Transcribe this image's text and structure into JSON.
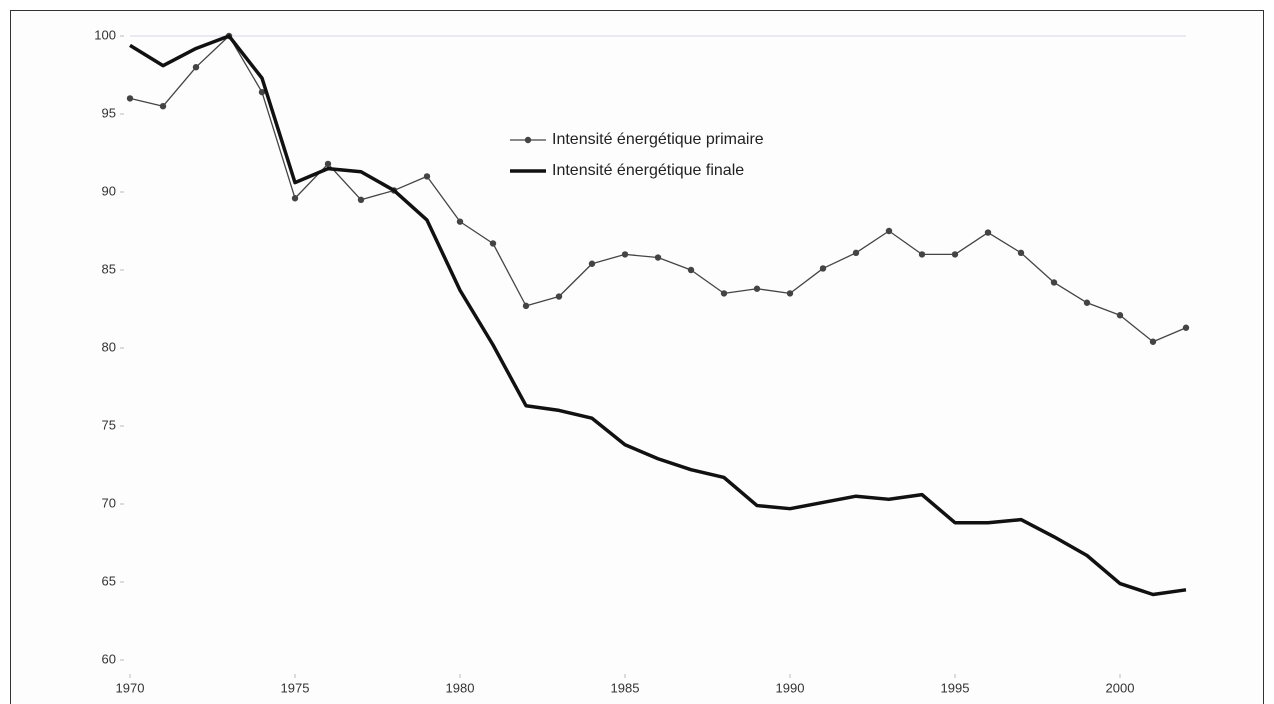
{
  "chart_data": {
    "type": "line",
    "x": [
      1970,
      1971,
      1972,
      1973,
      1974,
      1975,
      1976,
      1977,
      1978,
      1979,
      1980,
      1981,
      1982,
      1983,
      1984,
      1985,
      1986,
      1987,
      1988,
      1989,
      1990,
      1991,
      1992,
      1993,
      1994,
      1995,
      1996,
      1997,
      1998,
      1999,
      2000,
      2001,
      2002
    ],
    "series": [
      {
        "name": "Intensité énergétique primaire",
        "color": "#444444",
        "marker": true,
        "values": [
          96.0,
          95.5,
          98.0,
          100,
          96.4,
          89.6,
          91.8,
          89.5,
          90.1,
          91.0,
          88.1,
          86.7,
          82.7,
          83.3,
          85.4,
          86.0,
          85.8,
          85.0,
          83.5,
          83.8,
          83.5,
          85.1,
          86.1,
          87.5,
          86.0,
          86.0,
          87.4,
          86.1,
          84.2,
          82.9,
          82.1,
          80.4,
          81.3
        ]
      },
      {
        "name": "Intensité énergétique finale",
        "color": "#111111",
        "marker": false,
        "values": [
          99.4,
          98.1,
          99.2,
          100,
          97.3,
          90.6,
          91.5,
          91.3,
          90.1,
          88.2,
          83.7,
          80.2,
          76.3,
          76.0,
          75.5,
          73.8,
          72.9,
          72.2,
          71.7,
          69.9,
          69.7,
          70.1,
          70.5,
          70.3,
          70.6,
          68.8,
          68.8,
          69.0,
          67.9,
          66.7,
          64.9,
          64.2,
          64.5
        ]
      }
    ],
    "xlim": [
      1970,
      2002
    ],
    "xticks": [
      1970,
      1975,
      1980,
      1985,
      1990,
      1995,
      2000
    ],
    "ylim": [
      60,
      100
    ],
    "yticks": [
      60,
      65,
      70,
      75,
      80,
      85,
      90,
      95,
      100
    ]
  }
}
